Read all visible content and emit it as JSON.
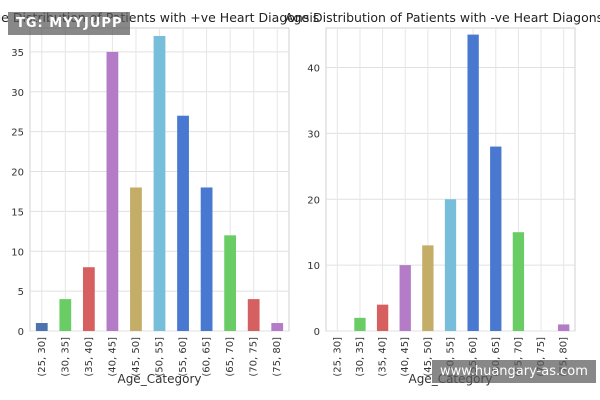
{
  "chart_data": [
    {
      "type": "bar",
      "title": "Age Distribution of Patients with +ve Heart Diagonsis",
      "xlabel": "Age_Category",
      "ylabel": "",
      "categories": [
        "(25, 30]",
        "(30, 35]",
        "(35, 40]",
        "(40, 45]",
        "(45, 50]",
        "(50, 55]",
        "(55, 60]",
        "(60, 65]",
        "(65, 70]",
        "(70, 75]",
        "(75, 80]"
      ],
      "values": [
        1,
        4,
        8,
        35,
        18,
        37,
        27,
        18,
        12,
        4,
        1
      ],
      "ylim": [
        0,
        38
      ],
      "yticks": [
        0,
        5,
        10,
        15,
        20,
        25,
        30,
        35
      ],
      "grid": true
    },
    {
      "type": "bar",
      "title": "Age Distribution of Patients with -ve Heart Diagonsis",
      "xlabel": "Age_Category",
      "ylabel": "",
      "categories": [
        "(25, 30]",
        "(30, 35]",
        "(35, 40]",
        "(40, 45]",
        "(45, 50]",
        "(50, 55]",
        "(55, 60]",
        "(60, 65]",
        "(65, 70]",
        "(70, 75]",
        "(75, 80]"
      ],
      "values": [
        0,
        2,
        4,
        10,
        13,
        20,
        45,
        28,
        15,
        0,
        1
      ],
      "ylim": [
        0,
        46
      ],
      "yticks": [
        0,
        10,
        20,
        30,
        40
      ],
      "grid": true
    }
  ],
  "bar_colors": [
    "#4c72b0",
    "#6acc65",
    "#d65f5f",
    "#b47cc7",
    "#c4ad66",
    "#77bedb",
    "#4878cf",
    "#4878cf",
    "#6acc65",
    "#d65f5f",
    "#b47cc7"
  ],
  "watermarks": {
    "top_left": "TG: MYYJUPP",
    "bottom_right": "www.huangary-as.com"
  }
}
